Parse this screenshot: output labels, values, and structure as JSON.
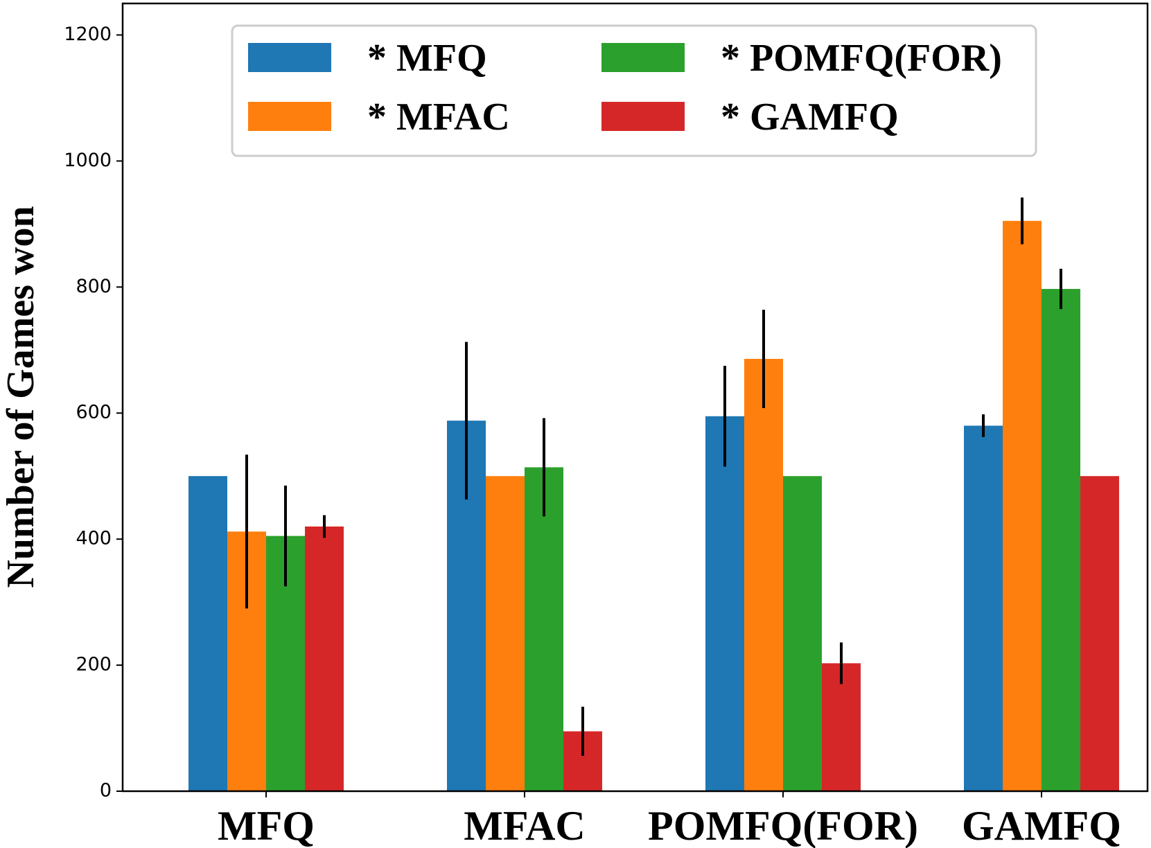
{
  "chart_data": {
    "type": "bar",
    "y_label": "Number of Games won",
    "categories": [
      "MFQ",
      "MFAC",
      "POMFQ(FOR)",
      "GAMFQ"
    ],
    "series": [
      {
        "name": "* MFQ",
        "color": "#1f77b4",
        "values": [
          500,
          588,
          595,
          580
        ],
        "errors": [
          null,
          125,
          80,
          18
        ]
      },
      {
        "name": "* MFAC",
        "color": "#ff7f0e",
        "values": [
          412,
          500,
          686,
          905
        ],
        "errors": [
          122,
          null,
          78,
          37
        ]
      },
      {
        "name": "* POMFQ(FOR)",
        "color": "#2ca02c",
        "values": [
          405,
          514,
          500,
          797
        ],
        "errors": [
          80,
          78,
          null,
          32
        ]
      },
      {
        "name": "* GAMFQ",
        "color": "#d62728",
        "values": [
          420,
          95,
          203,
          500
        ],
        "errors": [
          18,
          39,
          33,
          null
        ]
      }
    ],
    "ylim": [
      0,
      1250
    ],
    "yticks": [
      0,
      200,
      400,
      600,
      800,
      1000,
      1200
    ],
    "legend": "upper center"
  }
}
